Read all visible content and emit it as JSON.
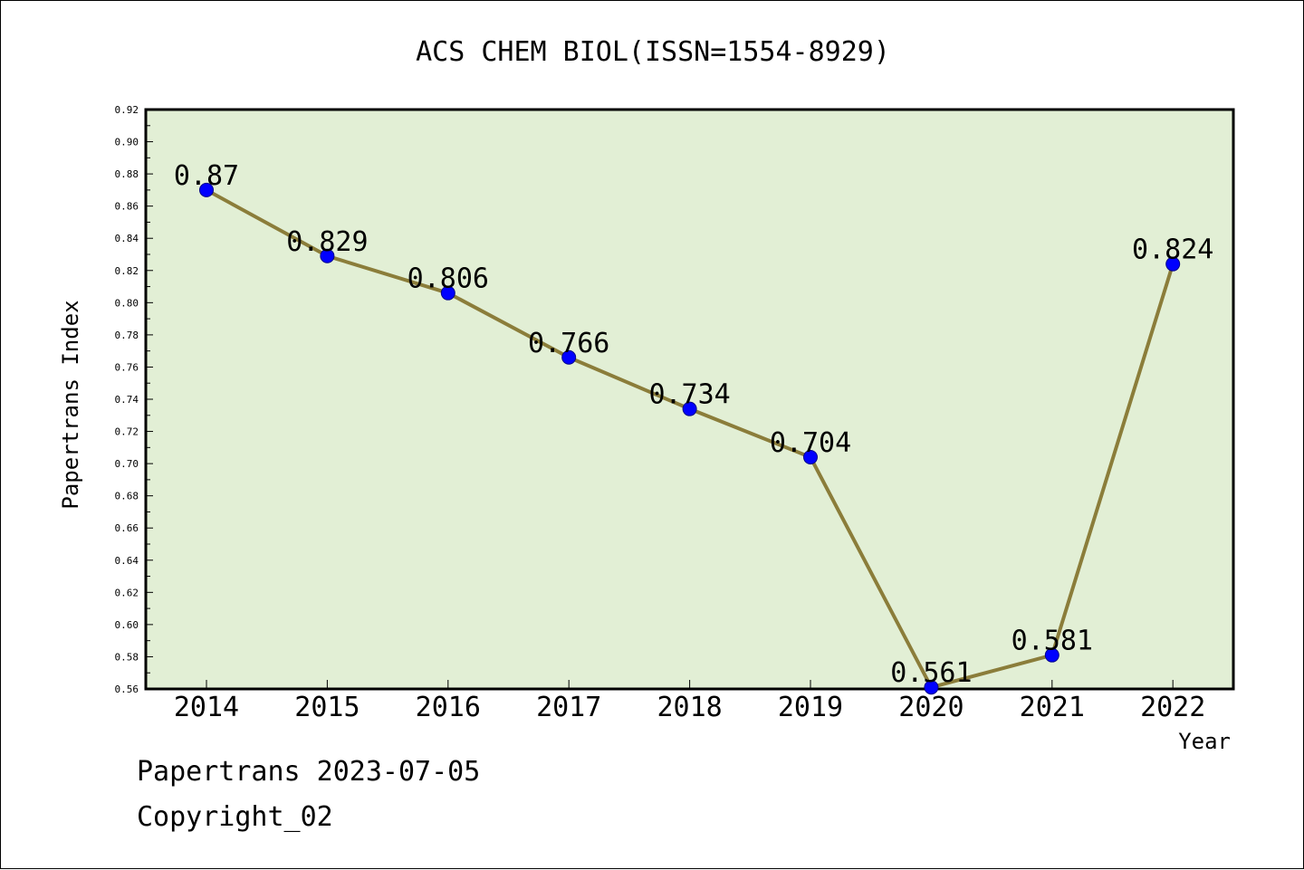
{
  "footer": {
    "line1": "Papertrans 2023-07-05",
    "line2": "Copyright_02"
  },
  "colors": {
    "plot_background": "#e2efd5",
    "line": "#8b7d3a",
    "marker": "#0000ff",
    "marker_edge": "#00008b",
    "axis": "#000000",
    "text": "#000000"
  },
  "chart_data": {
    "type": "line",
    "title": "ACS CHEM BIOL(ISSN=1554-8929)",
    "xlabel": "Year",
    "ylabel": "Papertrans Index",
    "categories": [
      "2014",
      "2015",
      "2016",
      "2017",
      "2018",
      "2019",
      "2020",
      "2021",
      "2022"
    ],
    "values": [
      0.87,
      0.829,
      0.806,
      0.766,
      0.734,
      0.704,
      0.561,
      0.581,
      0.824
    ],
    "data_labels": [
      "0.87",
      "0.829",
      "0.806",
      "0.766",
      "0.734",
      "0.704",
      "0.561",
      "0.581",
      "0.824"
    ],
    "ylim": [
      0.56,
      0.92
    ],
    "yticks": [
      "0.56",
      "0.58",
      "0.60",
      "0.62",
      "0.64",
      "0.66",
      "0.68",
      "0.70",
      "0.72",
      "0.74",
      "0.76",
      "0.78",
      "0.80",
      "0.82",
      "0.84",
      "0.86",
      "0.88",
      "0.90",
      "0.92"
    ],
    "grid": false,
    "legend": "none"
  }
}
